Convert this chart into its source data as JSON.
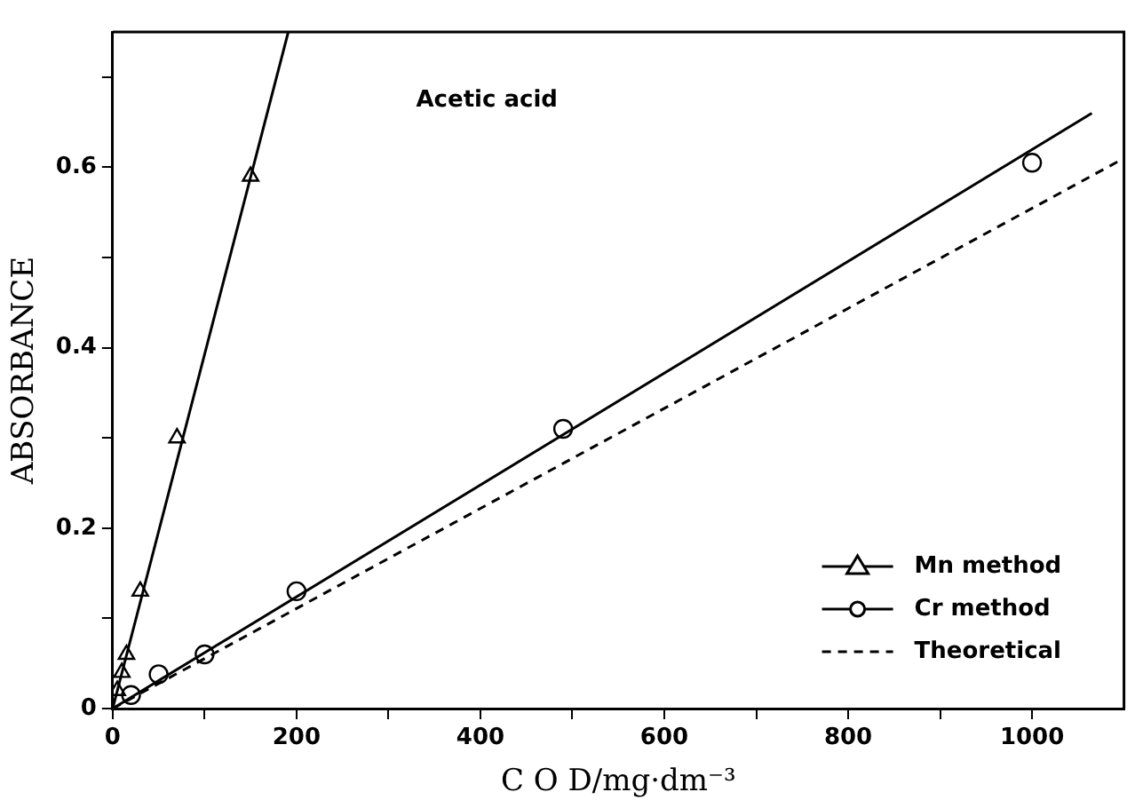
{
  "chart_data": {
    "type": "scatter",
    "xlabel": "C O D/mg·dm⁻³",
    "ylabel": "ABSORBANCE",
    "annotations": [
      "Acetic acid"
    ],
    "xlim": [
      0,
      1100
    ],
    "ylim": [
      0,
      0.75
    ],
    "xticks": [
      0,
      {
        "value": 100,
        "label": null
      },
      200,
      {
        "value": 300,
        "label": null
      },
      400,
      {
        "value": 500,
        "label": null
      },
      600,
      {
        "value": 700,
        "label": null
      },
      800,
      {
        "value": 900,
        "label": null
      },
      1000
    ],
    "yticks": [
      0,
      {
        "value": 0.1,
        "label": null
      },
      0.2,
      {
        "value": 0.3,
        "label": null
      },
      0.4,
      {
        "value": 0.5,
        "label": null
      },
      0.6,
      {
        "value": 0.7,
        "label": null
      }
    ],
    "grid": false,
    "legend": "bottom right",
    "series": [
      {
        "name": "Mn method",
        "type": "scatter",
        "marker": "triangle",
        "color": "#000000",
        "x": [
          5,
          10,
          15,
          30,
          70,
          150
        ],
        "values": [
          0.02,
          0.04,
          0.06,
          0.13,
          0.3,
          0.59
        ]
      },
      {
        "name": "Cr method",
        "type": "scatter",
        "marker": "circle",
        "color": "#000000",
        "x": [
          20,
          50,
          100,
          200,
          490,
          1000
        ],
        "values": [
          0.015,
          0.038,
          0.06,
          0.13,
          0.31,
          0.605
        ]
      },
      {
        "type": "line",
        "marker": "none",
        "line_style": "solid",
        "color": "#000000",
        "x": [
          0,
          191
        ],
        "values": [
          0,
          0.75
        ]
      },
      {
        "type": "line",
        "marker": "none",
        "line_style": "solid",
        "color": "#000000",
        "x": [
          0,
          1065
        ],
        "values": [
          0,
          0.66
        ]
      },
      {
        "name": "Theoretical",
        "type": "line",
        "marker": "none",
        "line_style": "dashed",
        "color": "#000000",
        "x": [
          0,
          1100
        ],
        "values": [
          0,
          0.61
        ]
      }
    ]
  }
}
